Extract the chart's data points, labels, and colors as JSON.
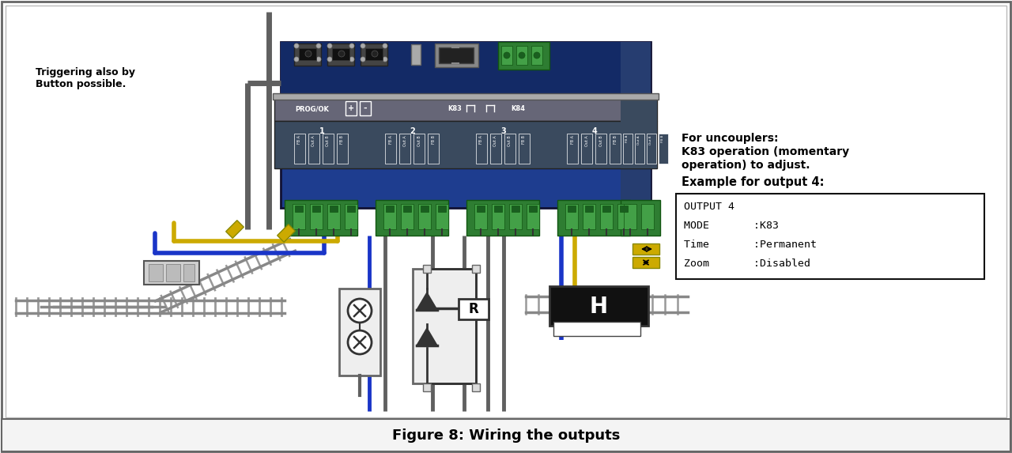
{
  "bg": "#ffffff",
  "caption": "Figure 8: Wiring the outputs",
  "left_line1": "Triggering also by",
  "left_line2": "Button possible.",
  "right_line1": "For uncouplers:",
  "right_line2": "K83 operation (momentary",
  "right_line3": "operation) to adjust.",
  "right_line4": "Example for output 4:",
  "box_text": [
    "OUTPUT 4",
    "MODE       :K83",
    "Time       :Permanent",
    "Zoom       :Disabled"
  ],
  "decoder_blue": "#1e3d8f",
  "decoder_dark": "#132a66",
  "decoder_mid": "#263d70",
  "green": "#2e7d32",
  "green_light": "#43a047",
  "gray_board": "#3d4a5c",
  "gray_rail": "#666677",
  "wire_blue": "#1a35c8",
  "wire_yellow": "#ccaa00",
  "wire_gray": "#606060",
  "track_gray": "#888888",
  "track_tie": "#aaaaaa",
  "track_light": "#cccccc"
}
